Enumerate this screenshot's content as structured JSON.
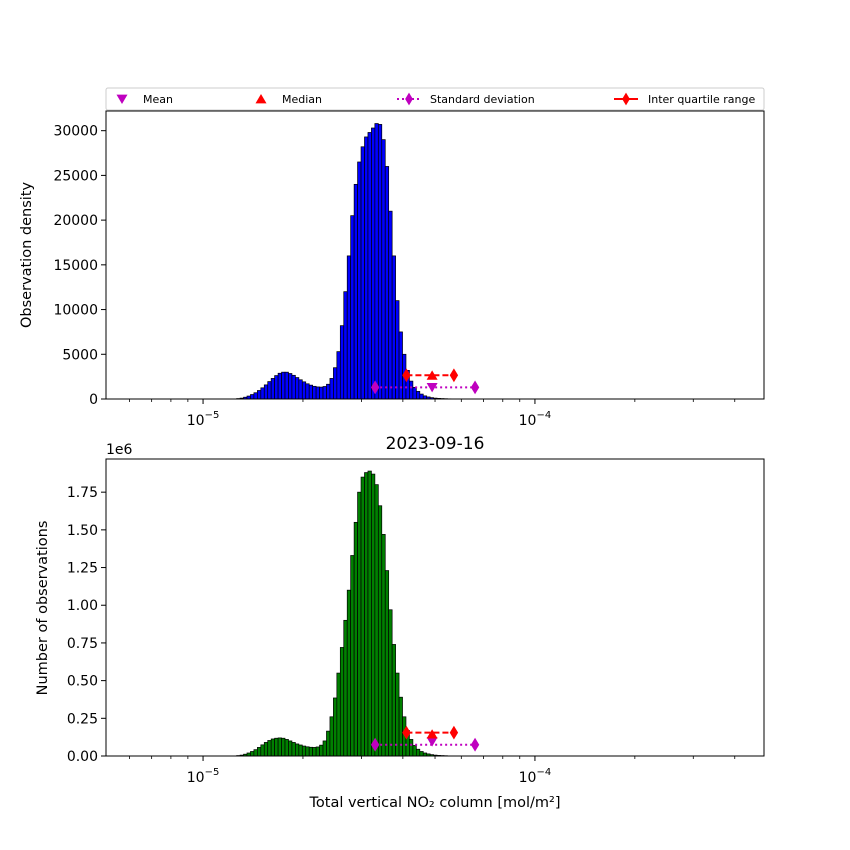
{
  "legend": {
    "items": [
      {
        "label": "Mean",
        "marker": "triangle-down",
        "color": "#bf00bf",
        "line": "none"
      },
      {
        "label": "Median",
        "marker": "triangle-up",
        "color": "#ff0000",
        "line": "none"
      },
      {
        "label": "Standard deviation",
        "marker": "diamond",
        "color": "#bf00bf",
        "line": "dotted"
      },
      {
        "label": "Inter quartile range",
        "marker": "diamond",
        "color": "#ff0000",
        "line": "solid"
      }
    ]
  },
  "chart_data": [
    {
      "type": "bar",
      "panel": "top",
      "title": "",
      "xlabel": "",
      "ylabel": "Observation density",
      "xscale": "log",
      "xlim": [
        5.1e-06,
        0.00049
      ],
      "ylim": [
        0,
        32200
      ],
      "yticks": [
        0,
        5000,
        10000,
        15000,
        20000,
        25000,
        30000
      ],
      "ytick_labels": [
        "0",
        "5000",
        "10000",
        "15000",
        "20000",
        "25000",
        "30000"
      ],
      "xticks": [
        1e-05,
        0.0001
      ],
      "bar_color": "#0000ff",
      "bin_edges_log10": [
        -5.0967,
        -4.0033
      ],
      "bin_count": 105,
      "bar_profile": [
        0,
        0,
        0,
        0,
        0,
        0,
        0,
        0,
        0,
        0,
        0,
        0,
        0,
        0,
        0,
        0,
        0,
        0,
        0,
        50,
        100,
        200,
        330,
        500,
        700,
        950,
        1250,
        1580,
        1950,
        2300,
        2620,
        2880,
        3000,
        3000,
        2850,
        2650,
        2400,
        2150,
        1920,
        1700,
        1550,
        1420,
        1350,
        1330,
        1400,
        1650,
        2300,
        3500,
        5300,
        8200,
        12000,
        16000,
        20500,
        24000,
        26500,
        28200,
        29300,
        29800,
        30300,
        30800,
        30700,
        29000,
        26000,
        21000,
        16000,
        11000,
        7500,
        5000,
        3200,
        2000,
        1300,
        850,
        550,
        350,
        230,
        150,
        100,
        70,
        50,
        35,
        20,
        12,
        8,
        5,
        3,
        2,
        1,
        0,
        0,
        0,
        0,
        0,
        0,
        0,
        0,
        0,
        0,
        0,
        0,
        0,
        0,
        0,
        0,
        0,
        0
      ],
      "statistics": {
        "mean": 4.9e-05,
        "median": 4.9e-05,
        "std_range": [
          3.3e-05,
          6.6e-05
        ],
        "iqr_range": [
          4.1e-05,
          5.7e-05
        ],
        "std_y": 1300,
        "iqr_y": 2650,
        "mean_y": 1300,
        "median_y": 2650
      }
    },
    {
      "type": "bar",
      "panel": "bottom",
      "title": "2023-09-16",
      "xlabel": "Total vertical NO₂ column [mol/m²]",
      "ylabel": "Number of observations",
      "offset_label": "1e6",
      "xscale": "log",
      "xlim": [
        5.1e-06,
        0.00049
      ],
      "ylim": [
        0,
        1.97
      ],
      "yticks": [
        0,
        0.25,
        0.5,
        0.75,
        1.0,
        1.25,
        1.5,
        1.75
      ],
      "ytick_labels": [
        "0.00",
        "0.25",
        "0.50",
        "0.75",
        "1.00",
        "1.25",
        "1.50",
        "1.75"
      ],
      "xticks": [
        1e-05,
        0.0001
      ],
      "bar_color": "#008000",
      "bin_edges_log10": [
        -5.0967,
        -4.0033
      ],
      "bin_count": 105,
      "bar_profile": [
        0,
        0,
        0,
        0,
        0,
        0,
        0,
        0,
        0,
        0,
        0,
        0,
        0,
        0,
        0,
        0,
        0,
        0,
        0,
        0.003,
        0.006,
        0.012,
        0.02,
        0.03,
        0.042,
        0.057,
        0.074,
        0.09,
        0.103,
        0.113,
        0.118,
        0.12,
        0.118,
        0.11,
        0.1,
        0.09,
        0.08,
        0.073,
        0.066,
        0.061,
        0.058,
        0.057,
        0.06,
        0.072,
        0.1,
        0.165,
        0.26,
        0.385,
        0.55,
        0.72,
        0.9,
        1.1,
        1.33,
        1.55,
        1.75,
        1.85,
        1.88,
        1.89,
        1.87,
        1.8,
        1.66,
        1.47,
        1.23,
        0.97,
        0.74,
        0.55,
        0.39,
        0.26,
        0.17,
        0.11,
        0.07,
        0.045,
        0.03,
        0.02,
        0.014,
        0.009,
        0.006,
        0.004,
        0.003,
        0.002,
        0.001,
        0.001,
        0.0005,
        0,
        0,
        0,
        0,
        0,
        0,
        0,
        0,
        0,
        0,
        0,
        0,
        0,
        0,
        0,
        0,
        0,
        0,
        0,
        0
      ],
      "statistics": {
        "mean": 4.9e-05,
        "median": 4.9e-05,
        "std_range": [
          3.3e-05,
          6.6e-05
        ],
        "iqr_range": [
          4.1e-05,
          5.7e-05
        ],
        "std_y": 0.075,
        "iqr_y": 0.155,
        "mean_y": 0.095,
        "median_y": 0.145
      }
    }
  ]
}
